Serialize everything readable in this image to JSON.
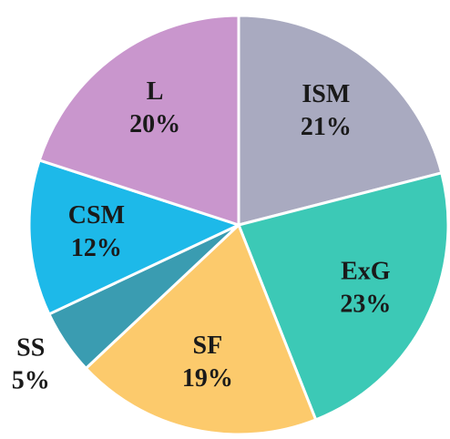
{
  "chart_data": {
    "type": "pie",
    "categories": [
      "ISM",
      "ExG",
      "SF",
      "SS",
      "CSM",
      "L"
    ],
    "values": [
      21,
      23,
      19,
      5,
      12,
      20
    ],
    "value_labels": [
      "21%",
      "23%",
      "19%",
      "5%",
      "12%",
      "20%"
    ],
    "colors": [
      "#a9aac0",
      "#3cc9b6",
      "#fcca6c",
      "#3a9cb1",
      "#1db9e9",
      "#c996cd"
    ]
  }
}
